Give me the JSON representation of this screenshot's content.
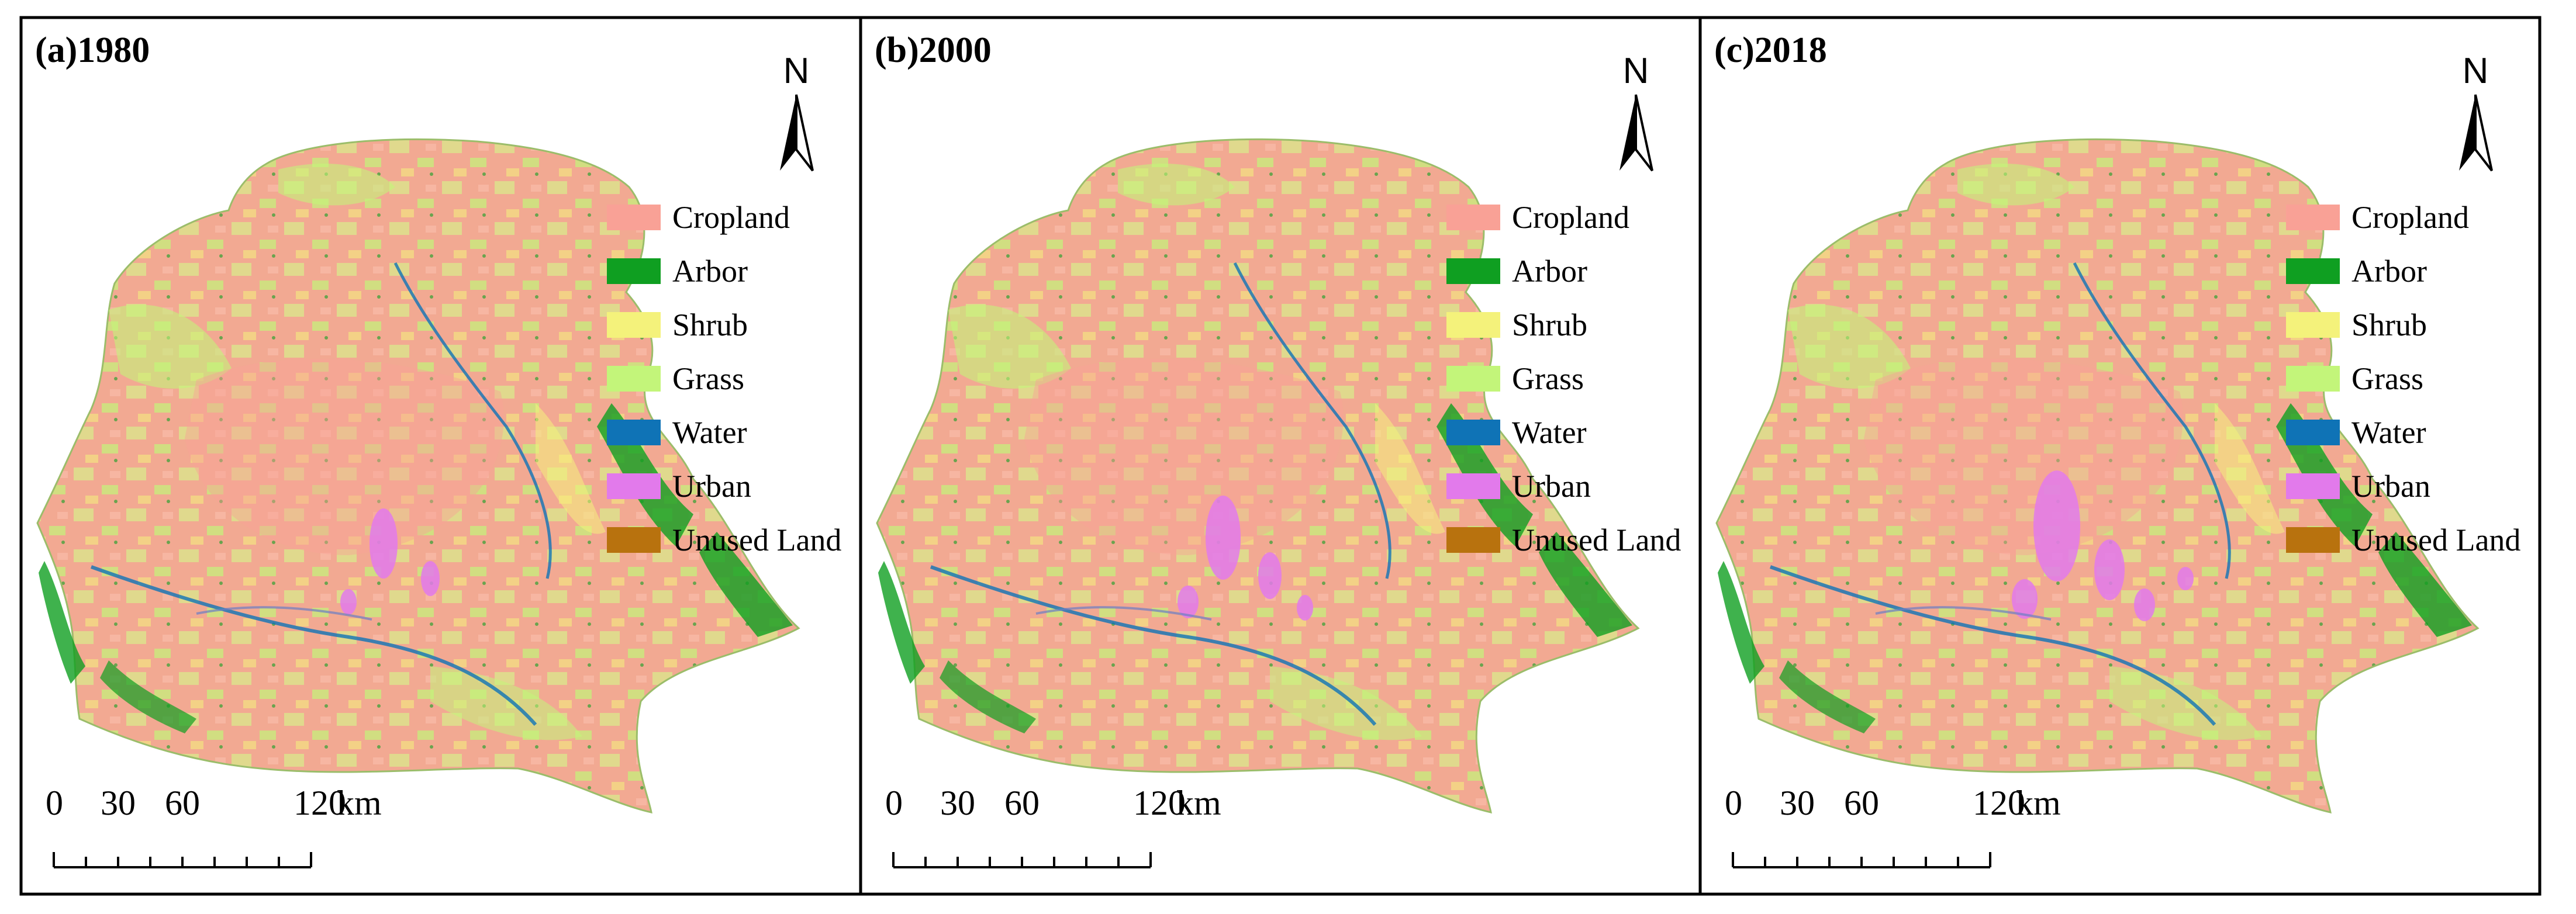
{
  "panels": [
    {
      "title": "(a)1980",
      "urban_level": 1
    },
    {
      "title": "(b)2000",
      "urban_level": 2
    },
    {
      "title": "(c)2018",
      "urban_level": 3
    }
  ],
  "north_label": "N",
  "legend": [
    {
      "label": "Cropland",
      "color": "#F9A196"
    },
    {
      "label": "Arbor",
      "color": "#0F9F21"
    },
    {
      "label": "Shrub",
      "color": "#F4F27B"
    },
    {
      "label": "Grass",
      "color": "#C3F57A"
    },
    {
      "label": "Water",
      "color": "#0F73B6"
    },
    {
      "label": "Urban",
      "color": "#E27AEB"
    },
    {
      "label": "Unused Land",
      "color": "#B8720E"
    }
  ],
  "scale_bar": {
    "ticks": [
      "0",
      "30",
      "60",
      "120"
    ],
    "unit": "km"
  }
}
